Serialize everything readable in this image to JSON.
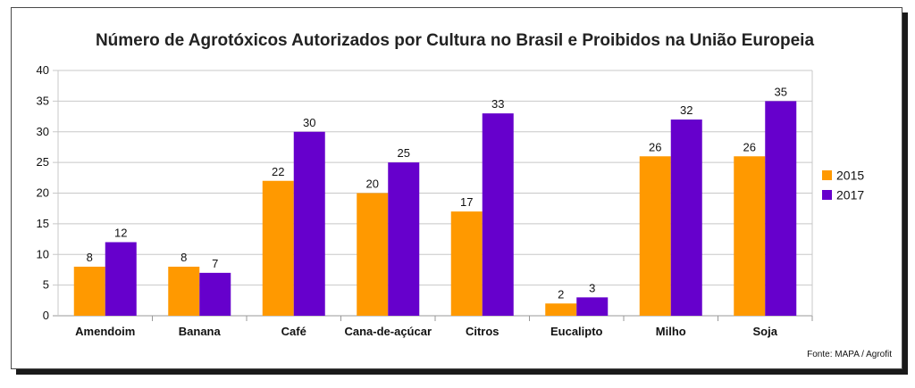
{
  "chart_data": {
    "type": "bar",
    "title": "Número de Agrotóxicos Autorizados por Cultura no Brasil e Proibidos na União Europeia",
    "categories": [
      "Amendoim",
      "Banana",
      "Café",
      "Cana-de-açúcar",
      "Citros",
      "Eucalipto",
      "Milho",
      "Soja"
    ],
    "series": [
      {
        "name": "2015",
        "color": "#ff9900",
        "values": [
          8,
          8,
          22,
          20,
          17,
          2,
          26,
          26
        ]
      },
      {
        "name": "2017",
        "color": "#6600cc",
        "values": [
          12,
          7,
          30,
          25,
          33,
          3,
          32,
          35
        ]
      }
    ],
    "ylim": [
      0,
      40
    ],
    "yticks": [
      0,
      5,
      10,
      15,
      20,
      25,
      30,
      35,
      40
    ],
    "grid": true,
    "legend": "right",
    "source": "Fonte: MAPA / Agrofit"
  }
}
